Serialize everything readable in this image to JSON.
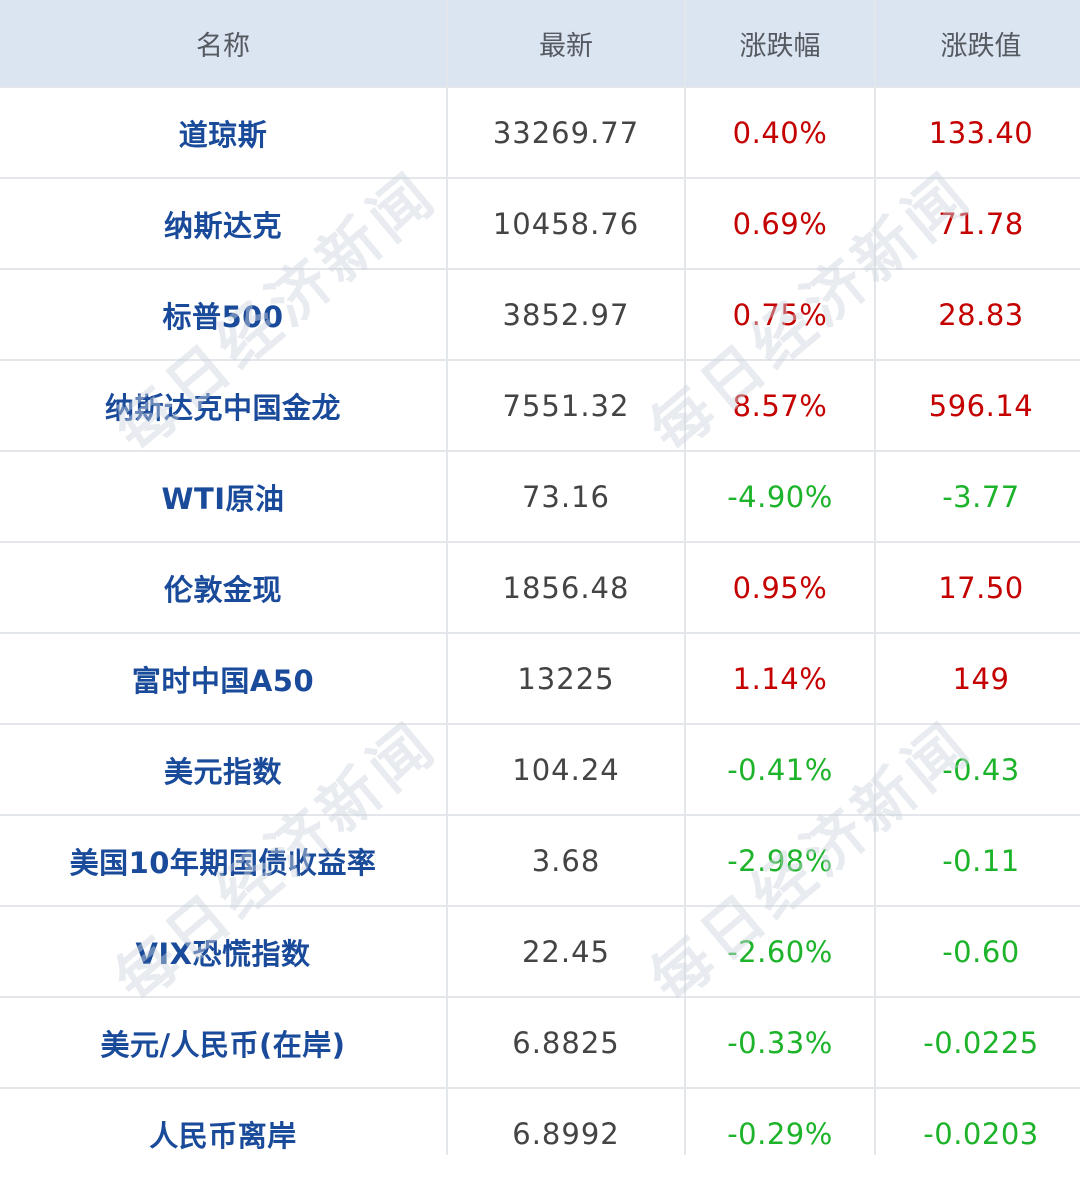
{
  "table": {
    "headers": {
      "name": "名称",
      "latest": "最新",
      "change_pct": "涨跌幅",
      "change_val": "涨跌值"
    },
    "rows": [
      {
        "name": "道琼斯",
        "latest": "33269.77",
        "change_pct": "0.40%",
        "change_val": "133.40",
        "direction": "up"
      },
      {
        "name": "纳斯达克",
        "latest": "10458.76",
        "change_pct": "0.69%",
        "change_val": "71.78",
        "direction": "up"
      },
      {
        "name": "标普500",
        "latest": "3852.97",
        "change_pct": "0.75%",
        "change_val": "28.83",
        "direction": "up"
      },
      {
        "name": "纳斯达克中国金龙",
        "latest": "7551.32",
        "change_pct": "8.57%",
        "change_val": "596.14",
        "direction": "up"
      },
      {
        "name": "WTI原油",
        "latest": "73.16",
        "change_pct": "-4.90%",
        "change_val": "-3.77",
        "direction": "down"
      },
      {
        "name": "伦敦金现",
        "latest": "1856.48",
        "change_pct": "0.95%",
        "change_val": "17.50",
        "direction": "up"
      },
      {
        "name": "富时中国A50",
        "latest": "13225",
        "change_pct": "1.14%",
        "change_val": "149",
        "direction": "up"
      },
      {
        "name": "美元指数",
        "latest": "104.24",
        "change_pct": "-0.41%",
        "change_val": "-0.43",
        "direction": "down"
      },
      {
        "name": "美国10年期国债收益率",
        "latest": "3.68",
        "change_pct": "-2.98%",
        "change_val": "-0.11",
        "direction": "down"
      },
      {
        "name": "VIX恐慌指数",
        "latest": "22.45",
        "change_pct": "-2.60%",
        "change_val": "-0.60",
        "direction": "down"
      },
      {
        "name": "美元/人民币(在岸)",
        "latest": "6.8825",
        "change_pct": "-0.33%",
        "change_val": "-0.0225",
        "direction": "down"
      },
      {
        "name": "人民币离岸",
        "latest": "6.8992",
        "change_pct": "-0.29%",
        "change_val": "-0.0203",
        "direction": "down"
      }
    ]
  },
  "watermark": {
    "text": "每日经济新闻"
  },
  "colors": {
    "header_bg": "#dbe4f1",
    "name_text": "#1a4a9a",
    "up": "#c40000",
    "down": "#1db32a",
    "grid": "#e3e6ea"
  }
}
